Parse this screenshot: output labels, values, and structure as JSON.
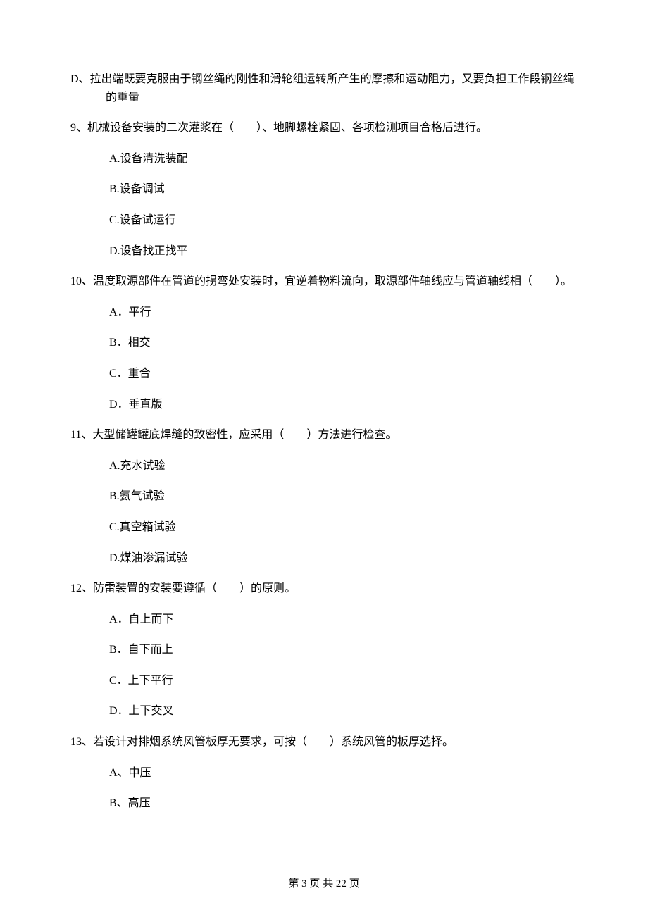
{
  "q8": {
    "optD": "D、拉出端既要克服由于钢丝绳的刚性和滑轮组运转所产生的摩擦和运动阻力，又要负担工作段钢丝绳的重量"
  },
  "q9": {
    "stem": "9、机械设备安装的二次灌浆在（　　）、地脚螺栓紧固、各项检测项目合格后进行。",
    "optA": "A.设备清洗装配",
    "optB": "B.设备调试",
    "optC": "C.设备试运行",
    "optD": "D.设备找正找平"
  },
  "q10": {
    "stem": "10、温度取源部件在管道的拐弯处安装时，宜逆着物料流向，取源部件轴线应与管道轴线相（　　）。",
    "optA": "A．平行",
    "optB": "B．相交",
    "optC": "C．重合",
    "optD": "D．垂直版"
  },
  "q11": {
    "stem": "11、大型储罐罐底焊缝的致密性，应采用（　　）方法进行检查。",
    "optA": "A.充水试验",
    "optB": "B.氨气试验",
    "optC": "C.真空箱试验",
    "optD": "D.煤油渗漏试验"
  },
  "q12": {
    "stem": "12、防雷装置的安装要遵循（　　）的原则。",
    "optA": "A．自上而下",
    "optB": "B．自下而上",
    "optC": "C．上下平行",
    "optD": "D．上下交叉"
  },
  "q13": {
    "stem": "13、若设计对排烟系统风管板厚无要求，可按（　　）系统风管的板厚选择。",
    "optA": "A、中压",
    "optB": "B、高压"
  },
  "footer": "第 3 页 共 22 页"
}
